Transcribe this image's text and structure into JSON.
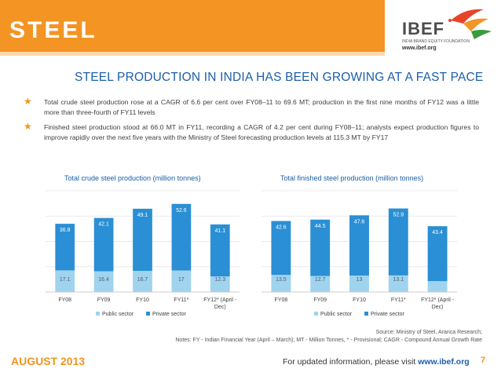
{
  "header": {
    "section_title": "STEEL",
    "logo_text": "IBEF",
    "logo_subtitle": "INDIA BRAND EQUITY FOUNDATION",
    "logo_url": "www.ibef.org"
  },
  "headline": "STEEL PRODUCTION IN INDIA HAS BEEN GROWING AT A FAST PACE",
  "bullets": [
    "Total crude steel production rose at a CAGR of 6.6 per cent over FY08–11 to 69.6 MT; production in the first nine months of FY12 was a little more than three-fourth of FY11 levels",
    "Finished steel production stood at 66.0 MT in FY11, recording a CAGR of 4.2 per cent during FY08–11; analysts expect production figures to improve rapidly over the next five years with the Ministry of Steel forecasting production levels at 115.3 MT by FY17"
  ],
  "chart_data": [
    {
      "type": "bar",
      "stacked": true,
      "title": "Total crude steel production (million tonnes)",
      "categories": [
        "FY08",
        "FY09",
        "FY10",
        "FY11*",
        "FY12* (April - Dec)"
      ],
      "series": [
        {
          "name": "Public sector",
          "values": [
            17.1,
            16.4,
            16.7,
            17.0,
            12.3
          ],
          "color": "#9fd3ee"
        },
        {
          "name": "Private sector",
          "values": [
            36.8,
            42.1,
            49.1,
            52.6,
            41.1
          ],
          "color": "#2a8fd4"
        }
      ],
      "ylim": [
        0,
        80
      ],
      "grid": true,
      "legend": "bottom"
    },
    {
      "type": "bar",
      "stacked": true,
      "title": "Total finished steel production (million tonnes)",
      "categories": [
        "FY08",
        "FY09",
        "FY10",
        "FY11*",
        "FY12* (April - Dec)"
      ],
      "series": [
        {
          "name": "Public sector",
          "values": [
            13.5,
            12.7,
            13.0,
            13.1,
            8.6
          ],
          "color": "#9fd3ee"
        },
        {
          "name": "Private sector",
          "values": [
            42.6,
            44.5,
            47.6,
            52.9,
            43.4
          ],
          "color": "#2a8fd4"
        }
      ],
      "ylim": [
        0,
        80
      ],
      "grid": true,
      "legend": "bottom"
    }
  ],
  "notes": {
    "source": "Source: Ministry of Steel, Aranca Research;",
    "definitions": "Notes: FY - Indian Financial Year (April – March); MT - Million Tonnes, * - Provisional; CAGR - Compound Annual Growth Rate"
  },
  "footer": {
    "date": "AUGUST 2013",
    "info_prefix": "For updated information, please visit",
    "info_link": "www.ibef.org",
    "page_number": "7"
  }
}
